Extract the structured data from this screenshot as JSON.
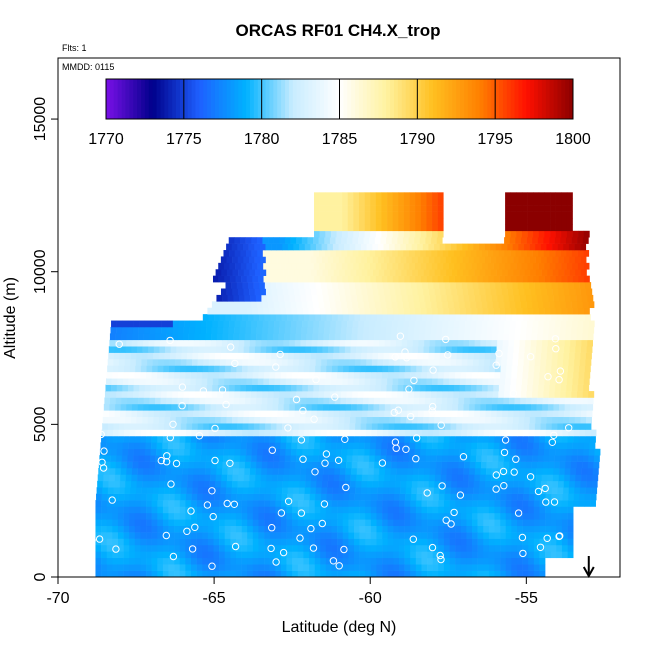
{
  "chart_data": {
    "type": "heatmap",
    "title": "ORCAS RF01 CH4.X_trop",
    "flights_label": "Flts: 1",
    "date_label": "MMDD: 0115",
    "xlabel": "Latitude (deg N)",
    "ylabel": "Altitude (m)",
    "xlim": [
      -70,
      -52
    ],
    "ylim": [
      0,
      17000
    ],
    "x_ticks": [
      -70,
      -65,
      -60,
      -55
    ],
    "y_ticks": [
      0,
      5000,
      10000,
      15000
    ],
    "colorbar": {
      "min": 1770,
      "max": 1800,
      "ticks": [
        1770,
        1775,
        1780,
        1785,
        1790,
        1795,
        1800
      ],
      "colors": [
        "#7a10e8",
        "#00008b",
        "#1e60ff",
        "#00b2ff",
        "#c8ecff",
        "#ffffff",
        "#fff2a0",
        "#ffc020",
        "#ff8000",
        "#ff1000",
        "#8b0000"
      ]
    },
    "arrow_latitude": -53
  }
}
